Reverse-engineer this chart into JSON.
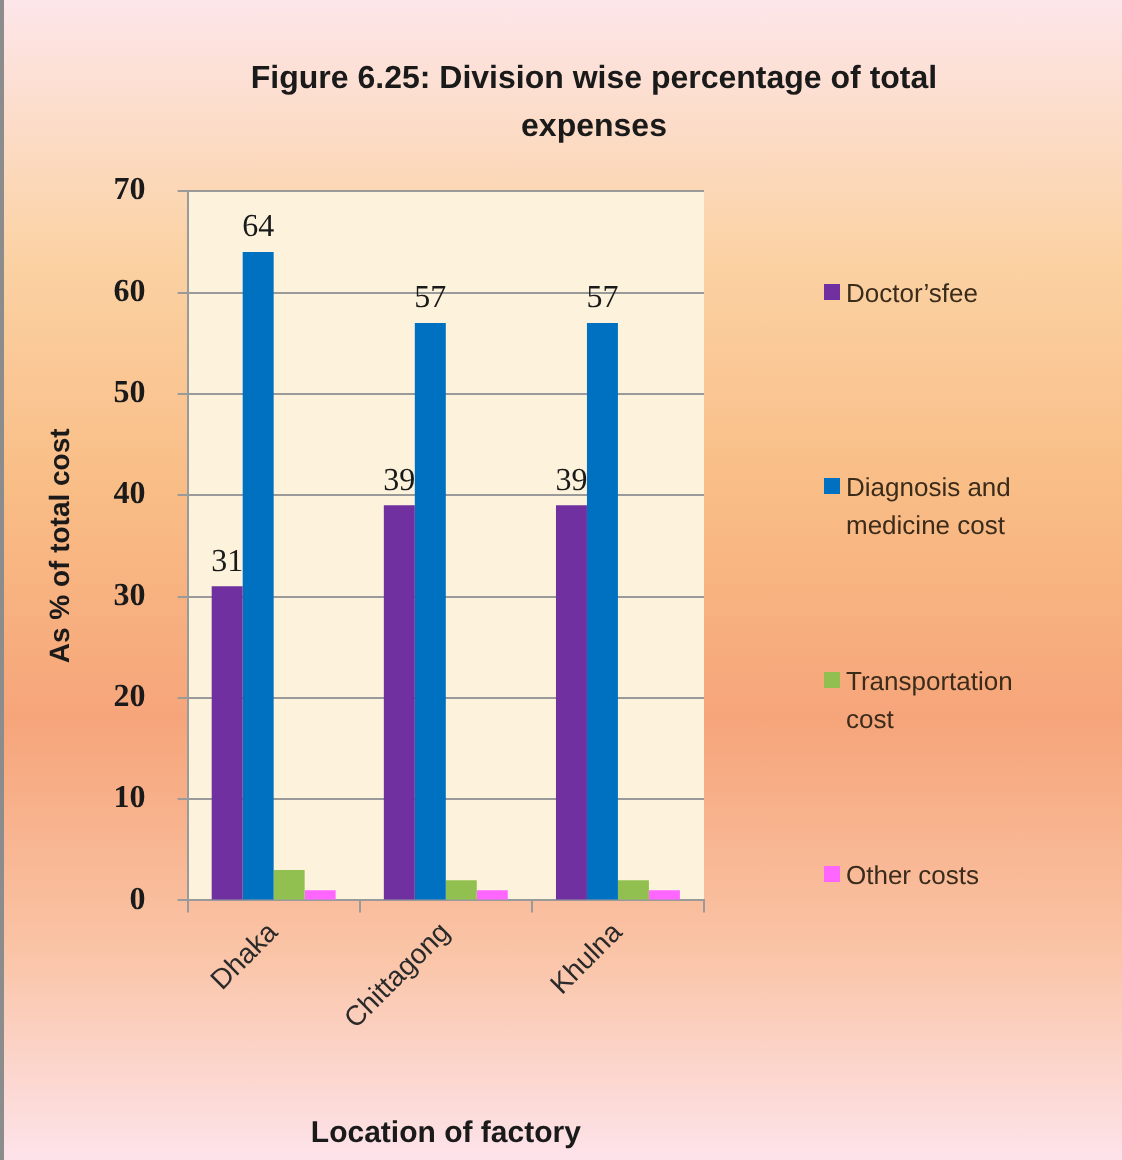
{
  "chart_data": {
    "type": "bar",
    "title": "Figure 6.25: Division wise percentage of total expenses",
    "xlabel": "Location of factory",
    "ylabel": "As % of total cost",
    "categories": [
      "Dhaka",
      "Chittagong",
      "Khulna"
    ],
    "series": [
      {
        "name": "Doctor’sfee",
        "color": "#7030a0",
        "values": [
          31,
          39,
          39
        ],
        "value_labels": [
          "31",
          "39",
          "39"
        ]
      },
      {
        "name": "Diagnosis and medicine cost",
        "color": "#0070c0",
        "values": [
          64,
          57,
          57
        ],
        "value_labels": [
          "64",
          "57",
          "57"
        ]
      },
      {
        "name": "Transportation cost",
        "color": "#92c050",
        "values": [
          3,
          2,
          2
        ]
      },
      {
        "name": "Other costs",
        "color": "#ff66ff",
        "values": [
          1,
          1,
          1
        ]
      }
    ],
    "ylim": [
      0,
      70
    ],
    "yticks": [
      0,
      10,
      20,
      30,
      40,
      50,
      60,
      70
    ],
    "grid": "y",
    "legend": "right"
  }
}
